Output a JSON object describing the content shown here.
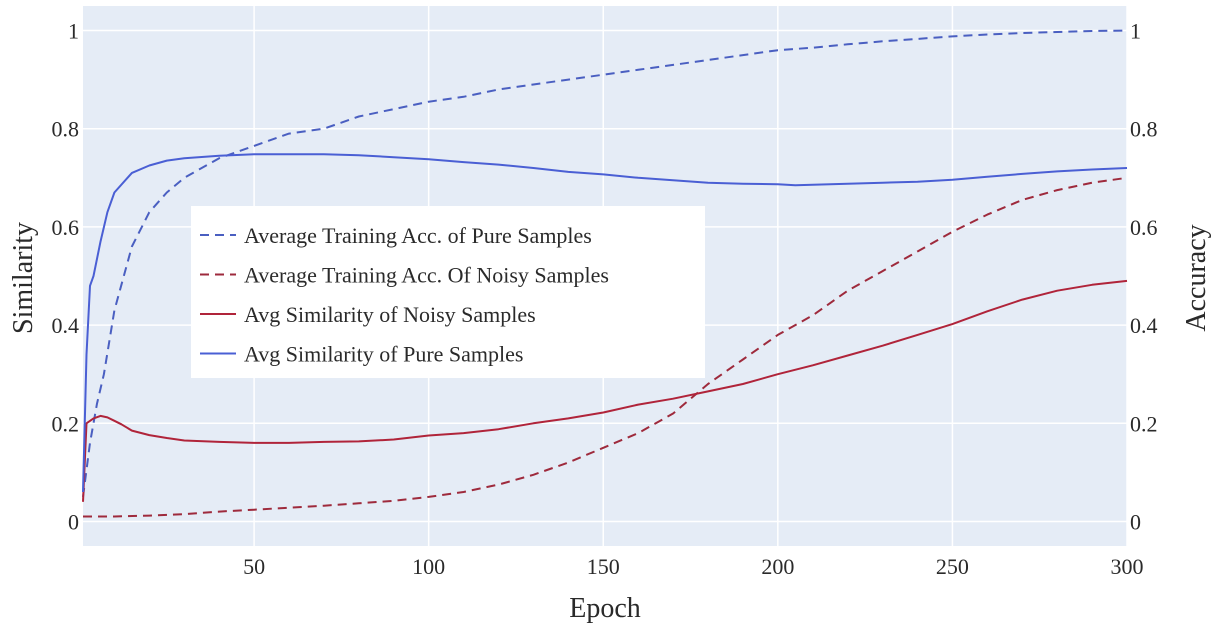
{
  "chart_data": {
    "type": "line",
    "xlabel": "Epoch",
    "ylabel_left": "Similarity",
    "ylabel_right": "Accuracy",
    "xlim": [
      1,
      300
    ],
    "ylim_left": [
      -0.05,
      1.05
    ],
    "ylim_right": [
      -0.05,
      1.05
    ],
    "x_ticks": [
      50,
      100,
      150,
      200,
      250,
      300
    ],
    "y_ticks_left": [
      0,
      0.2,
      0.4,
      0.6,
      0.8,
      1
    ],
    "y_ticks_right": [
      0,
      0.2,
      0.4,
      0.6,
      0.8,
      1
    ],
    "grid": true,
    "legend_position": "center-left",
    "background_color": "#e5ecf6",
    "series": [
      {
        "name": "Average Training Acc. of Pure Samples",
        "axis": "right",
        "color": "#4a5fc1",
        "dash": "dashed",
        "x": [
          1,
          3,
          5,
          7,
          10,
          15,
          20,
          25,
          30,
          40,
          50,
          60,
          70,
          80,
          90,
          100,
          110,
          120,
          130,
          140,
          150,
          160,
          170,
          180,
          190,
          200,
          210,
          220,
          230,
          240,
          250,
          260,
          270,
          280,
          290,
          300
        ],
        "values": [
          0.05,
          0.16,
          0.24,
          0.3,
          0.43,
          0.56,
          0.63,
          0.67,
          0.7,
          0.74,
          0.765,
          0.79,
          0.8,
          0.825,
          0.84,
          0.855,
          0.865,
          0.88,
          0.89,
          0.9,
          0.91,
          0.92,
          0.93,
          0.94,
          0.95,
          0.96,
          0.965,
          0.972,
          0.978,
          0.983,
          0.988,
          0.992,
          0.995,
          0.997,
          0.999,
          1.0
        ]
      },
      {
        "name": "Average Training Acc. Of Noisy Samples",
        "axis": "right",
        "color": "#9e2a3c",
        "dash": "dashed",
        "x": [
          1,
          10,
          20,
          30,
          40,
          50,
          60,
          70,
          80,
          90,
          100,
          110,
          120,
          130,
          140,
          150,
          160,
          170,
          180,
          190,
          200,
          210,
          220,
          230,
          240,
          250,
          260,
          270,
          280,
          290,
          300
        ],
        "values": [
          0.01,
          0.01,
          0.012,
          0.015,
          0.02,
          0.024,
          0.028,
          0.032,
          0.037,
          0.042,
          0.05,
          0.06,
          0.075,
          0.095,
          0.12,
          0.15,
          0.18,
          0.22,
          0.28,
          0.33,
          0.38,
          0.42,
          0.47,
          0.51,
          0.55,
          0.59,
          0.625,
          0.655,
          0.675,
          0.69,
          0.7
        ]
      },
      {
        "name": "Avg Similarity of Noisy Samples",
        "axis": "left",
        "color": "#b0243a",
        "dash": "solid",
        "x": [
          1,
          2,
          4,
          6,
          8,
          10,
          12,
          15,
          20,
          25,
          30,
          40,
          50,
          60,
          70,
          80,
          90,
          100,
          110,
          120,
          130,
          140,
          150,
          160,
          170,
          180,
          190,
          200,
          210,
          220,
          230,
          240,
          250,
          260,
          270,
          280,
          290,
          300
        ],
        "values": [
          0.04,
          0.2,
          0.21,
          0.215,
          0.212,
          0.205,
          0.198,
          0.185,
          0.176,
          0.17,
          0.165,
          0.162,
          0.16,
          0.16,
          0.162,
          0.163,
          0.167,
          0.175,
          0.18,
          0.188,
          0.2,
          0.21,
          0.222,
          0.238,
          0.25,
          0.265,
          0.28,
          0.3,
          0.318,
          0.338,
          0.358,
          0.38,
          0.402,
          0.428,
          0.452,
          0.47,
          0.482,
          0.49
        ]
      },
      {
        "name": "Avg Similarity of Pure Samples",
        "axis": "left",
        "color": "#4a5fd4",
        "dash": "solid",
        "x": [
          1,
          2,
          3,
          4,
          6,
          8,
          10,
          15,
          20,
          25,
          30,
          40,
          50,
          60,
          70,
          80,
          90,
          100,
          110,
          120,
          130,
          140,
          150,
          160,
          170,
          180,
          190,
          200,
          205,
          210,
          220,
          230,
          240,
          250,
          260,
          270,
          280,
          290,
          300
        ],
        "values": [
          0.06,
          0.34,
          0.48,
          0.5,
          0.57,
          0.63,
          0.67,
          0.71,
          0.725,
          0.735,
          0.74,
          0.745,
          0.748,
          0.748,
          0.748,
          0.746,
          0.742,
          0.738,
          0.732,
          0.727,
          0.72,
          0.712,
          0.707,
          0.7,
          0.695,
          0.69,
          0.688,
          0.687,
          0.685,
          0.686,
          0.688,
          0.69,
          0.692,
          0.696,
          0.702,
          0.708,
          0.713,
          0.717,
          0.72
        ]
      }
    ]
  }
}
